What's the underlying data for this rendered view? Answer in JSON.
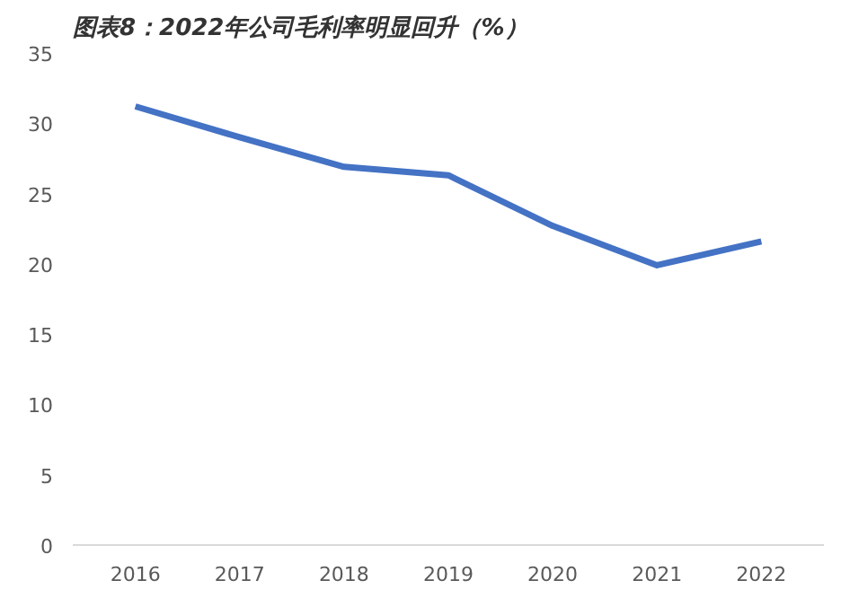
{
  "chart_data": {
    "type": "line",
    "title": "图表8：2022年公司毛利率明显回升（%）",
    "categories": [
      "2016",
      "2017",
      "2018",
      "2019",
      "2020",
      "2021",
      "2022"
    ],
    "series": [
      {
        "color": "#4472c4",
        "values": [
          31.2,
          29.0,
          26.9,
          26.3,
          22.7,
          19.9,
          21.6
        ]
      }
    ],
    "ylim": [
      0,
      35
    ],
    "yticks": [
      0,
      5,
      10,
      15,
      20,
      25,
      30,
      35
    ],
    "marker": "none",
    "line_style": "solid"
  }
}
